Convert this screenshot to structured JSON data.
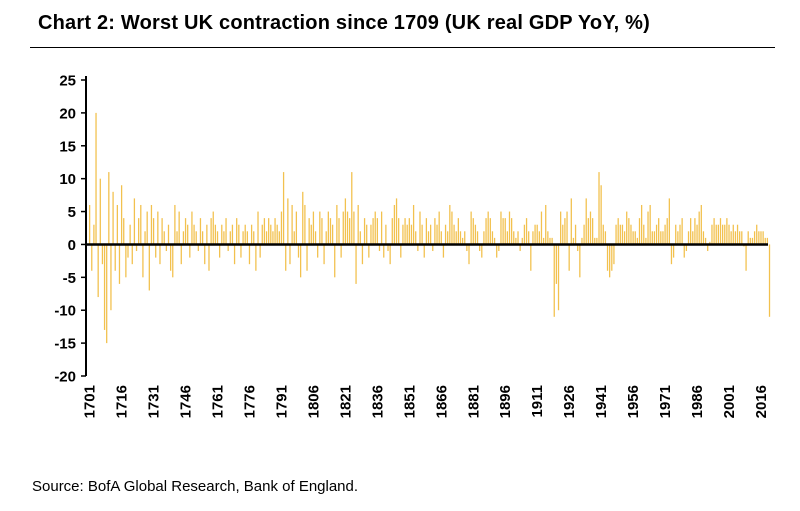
{
  "header": {
    "title": "Chart 2: Worst UK contraction since 1709 (UK real GDP YoY, %)"
  },
  "footer": {
    "source": "Source: BofA Global Research, Bank of England."
  },
  "chart_data": {
    "type": "bar",
    "title": "Chart 2: Worst UK contraction since 1709 (UK real GDP YoY, %)",
    "xlabel": "",
    "ylabel": "",
    "ylim": [
      -20,
      25
    ],
    "yticks": [
      25,
      20,
      15,
      10,
      5,
      0,
      -5,
      -10,
      -15,
      -20
    ],
    "x_start_year": 1701,
    "x_end_year": 2020,
    "x_tick_years": [
      1701,
      1716,
      1731,
      1746,
      1761,
      1776,
      1791,
      1806,
      1821,
      1836,
      1851,
      1866,
      1881,
      1896,
      1911,
      1926,
      1941,
      1956,
      1971,
      1986,
      2001,
      2016
    ],
    "bar_color": "#F2C14E",
    "axis_color": "#000000",
    "zero_line_color": "#000000",
    "grid": false,
    "legend": "none",
    "values": [
      6,
      -4,
      3,
      20,
      -8,
      10,
      -3,
      -13,
      -15,
      11,
      -10,
      8,
      -4,
      6,
      -6,
      9,
      4,
      -5,
      -2,
      3,
      -3,
      7,
      -1,
      4,
      6,
      -5,
      2,
      5,
      -7,
      6,
      4,
      -2,
      5,
      -3,
      4,
      2,
      -1,
      3,
      -4,
      -5,
      6,
      2,
      5,
      -3,
      2,
      4,
      3,
      -2,
      5,
      3,
      2,
      -1,
      4,
      2,
      -3,
      3,
      -4,
      4,
      5,
      3,
      2,
      -2,
      3,
      2,
      4,
      -1,
      2,
      3,
      -3,
      4,
      3,
      -2,
      2,
      3,
      2,
      -3,
      3,
      2,
      -4,
      5,
      -2,
      3,
      4,
      2,
      4,
      3,
      2,
      4,
      3,
      2,
      5,
      11,
      -4,
      7,
      -3,
      6,
      2,
      5,
      -2,
      -5,
      8,
      6,
      -4,
      4,
      3,
      5,
      2,
      -2,
      5,
      4,
      -3,
      2,
      5,
      4,
      3,
      -5,
      6,
      4,
      -2,
      5,
      7,
      5,
      4,
      11,
      5,
      -6,
      6,
      2,
      -3,
      4,
      3,
      -2,
      3,
      4,
      5,
      4,
      -1,
      5,
      -2,
      3,
      -1,
      -3,
      4,
      6,
      7,
      4,
      -2,
      3,
      4,
      3,
      4,
      3,
      6,
      2,
      -1,
      5,
      3,
      -2,
      4,
      2,
      3,
      -1,
      4,
      3,
      5,
      2,
      -2,
      3,
      2,
      6,
      5,
      3,
      2,
      4,
      2,
      1,
      2,
      -1,
      -3,
      5,
      4,
      3,
      2,
      -1,
      -2,
      2,
      4,
      5,
      4,
      2,
      1,
      -2,
      -1,
      5,
      4,
      4,
      2,
      5,
      4,
      2,
      1,
      2,
      -1,
      1,
      3,
      4,
      2,
      -4,
      2,
      3,
      3,
      2,
      5,
      1,
      6,
      2,
      1,
      1,
      -11,
      -6,
      -10,
      5,
      3,
      4,
      5,
      -4,
      7,
      1,
      3,
      -1,
      -5,
      1,
      3,
      7,
      4,
      5,
      4,
      1,
      1,
      11,
      9,
      3,
      2,
      -4,
      -5,
      -4,
      -3,
      3,
      4,
      3,
      3,
      2,
      5,
      4,
      3,
      2,
      2,
      1,
      4,
      6,
      3,
      1,
      5,
      6,
      2,
      2,
      3,
      4,
      2,
      2,
      3,
      4,
      7,
      -3,
      -2,
      3,
      2,
      3,
      4,
      -2,
      -1,
      2,
      4,
      2,
      4,
      3,
      5,
      6,
      2,
      1,
      -1,
      0.4,
      3,
      4,
      3,
      3,
      4,
      3,
      3,
      4,
      3,
      2,
      3,
      2,
      3,
      2,
      2,
      -0.3,
      -4,
      2,
      1,
      1,
      2,
      3,
      2,
      2,
      2,
      1,
      1,
      -11
    ]
  }
}
